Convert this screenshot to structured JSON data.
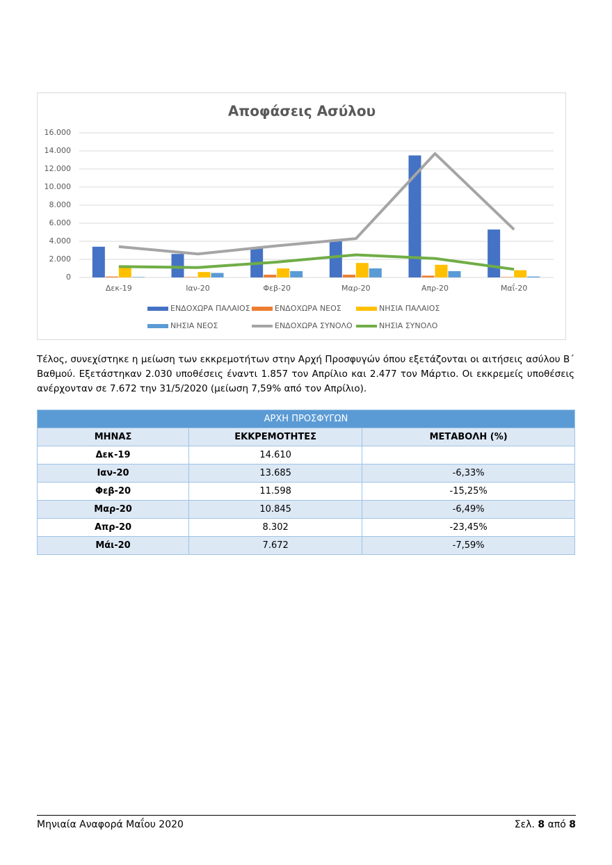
{
  "chart_data": {
    "type": "bar-line",
    "title": "Αποφάσεις Ασύλου",
    "categories": [
      "Δεκ-19",
      "Ιαν-20",
      "Φεβ-20",
      "Μαρ-20",
      "Απρ-20",
      "Μαΐ-20"
    ],
    "series": [
      {
        "name": "ΕΝΔΟΧΩΡΑ ΠΑΛΑΙΟΣ",
        "type": "bar",
        "color": "#4472c4",
        "values": [
          3400,
          2600,
          3300,
          4000,
          13500,
          5300
        ]
      },
      {
        "name": "ΕΝΔΟΧΩΡΑ ΝΕΟΣ",
        "type": "bar",
        "color": "#ed7d31",
        "values": [
          100,
          50,
          300,
          300,
          200,
          50
        ]
      },
      {
        "name": "ΝΗΣΙΑ ΠΑΛΑΙΟΣ",
        "type": "bar",
        "color": "#ffc000",
        "values": [
          1100,
          600,
          1000,
          1600,
          1400,
          800
        ]
      },
      {
        "name": "ΝΗΣΙΑ ΝΕΟΣ",
        "type": "bar",
        "color": "#5b9bd5",
        "values": [
          50,
          500,
          700,
          1000,
          700,
          100
        ]
      },
      {
        "name": "ΕΝΔΟΧΩΡΑ ΣΥΝΟΛΟ",
        "type": "line",
        "color": "#a5a5a5",
        "values": [
          3400,
          2600,
          3500,
          4300,
          13700,
          5300
        ]
      },
      {
        "name": "ΝΗΣΙΑ ΣΥΝΟΛΟ",
        "type": "line",
        "color": "#70ad47",
        "values": [
          1200,
          1100,
          1700,
          2500,
          2100,
          900
        ]
      }
    ],
    "ylim": [
      0,
      16000
    ],
    "yticks": [
      0,
      {
        "value": 2000,
        "label": "2.000"
      },
      {
        "value": 4000,
        "label": "4.000"
      },
      {
        "value": 6000,
        "label": "6.000"
      },
      {
        "value": 8000,
        "label": "8.000"
      },
      {
        "value": 10000,
        "label": "10.000"
      },
      {
        "value": 12000,
        "label": "12.000"
      },
      {
        "value": 14000,
        "label": "14.000"
      },
      {
        "value": 16000,
        "label": "16.000"
      }
    ],
    "grid": true,
    "legend": "bottom"
  },
  "paragraph": "Τέλος, συνεχίστηκε η μείωση των εκκρεμοτήτων στην Αρχή Προσφυγών όπου εξετάζονται οι αιτήσεις ασύλου Β΄ Βαθμού. Εξετάστηκαν 2.030 υποθέσεις έναντι 1.857 τον Απρίλιο και 2.477 τον Μάρτιο. Οι εκκρεμείς υποθέσεις ανέρχονταν σε 7.672 την 31/5/2020  (μείωση 7,59% από τον Απρίλιο).",
  "table": {
    "title": "ΑΡΧΗ ΠΡΟΣΦΥΓΩΝ",
    "columns": [
      "ΜΗΝΑΣ",
      "ΕΚΚΡΕΜΟΤΗΤΕΣ",
      "ΜΕΤΑΒΟΛΗ (%)"
    ],
    "rows": [
      [
        "Δεκ-19",
        "14.610",
        null
      ],
      [
        "Ιαν-20",
        "13.685",
        "-6,33%"
      ],
      [
        "Φεβ-20",
        "11.598",
        "-15,25%"
      ],
      [
        "Μαρ-20",
        "10.845",
        "-6,49%"
      ],
      [
        "Απρ-20",
        "8.302",
        "-23,45%"
      ],
      [
        "Μάι-20",
        "7.672",
        "-7,59%"
      ]
    ]
  },
  "footer": {
    "left": "Μηνιαία Αναφορά Μαΐου 2020",
    "page_prefix": "Σελ.",
    "page": "8",
    "page_sep": "από",
    "pages": "8"
  }
}
